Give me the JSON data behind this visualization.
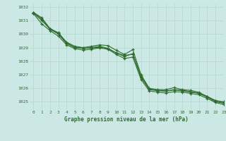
{
  "title": "Graphe pression niveau de la mer (hPa)",
  "bg_color": "#cce8e4",
  "grid_color": "#b0d8d0",
  "line_color": "#2d6e2d",
  "xlim": [
    -0.5,
    23
  ],
  "ylim": [
    1024.4,
    1032.2
  ],
  "yticks": [
    1025,
    1026,
    1027,
    1028,
    1029,
    1030,
    1031,
    1032
  ],
  "xticks": [
    0,
    1,
    2,
    3,
    4,
    5,
    6,
    7,
    8,
    9,
    10,
    11,
    12,
    13,
    14,
    15,
    16,
    17,
    18,
    19,
    20,
    21,
    22,
    23
  ],
  "series1": [
    1031.6,
    1031.2,
    1030.4,
    1030.1,
    1029.4,
    1029.1,
    1029.0,
    1029.1,
    1029.2,
    1029.15,
    1028.8,
    1028.5,
    1028.85,
    1027.0,
    1026.0,
    1025.9,
    1025.9,
    1026.05,
    1025.9,
    1025.85,
    1025.7,
    1025.4,
    1025.1,
    1025.0
  ],
  "series2": [
    1031.55,
    1031.0,
    1030.35,
    1030.0,
    1029.3,
    1029.0,
    1028.95,
    1029.0,
    1029.1,
    1028.95,
    1028.6,
    1028.35,
    1028.55,
    1026.8,
    1025.9,
    1025.82,
    1025.78,
    1025.88,
    1025.82,
    1025.72,
    1025.62,
    1025.35,
    1025.0,
    1024.9
  ],
  "series3": [
    1031.5,
    1030.75,
    1030.25,
    1029.85,
    1029.2,
    1028.92,
    1028.82,
    1028.88,
    1028.98,
    1028.88,
    1028.5,
    1028.2,
    1028.3,
    1026.65,
    1025.8,
    1025.72,
    1025.65,
    1025.75,
    1025.72,
    1025.62,
    1025.52,
    1025.25,
    1024.95,
    1024.8
  ],
  "series4": [
    1031.6,
    1031.1,
    1030.4,
    1030.05,
    1029.35,
    1029.02,
    1028.97,
    1028.97,
    1029.02,
    1028.92,
    1028.62,
    1028.42,
    1028.52,
    1026.9,
    1025.95,
    1025.87,
    1025.8,
    1025.9,
    1025.85,
    1025.75,
    1025.65,
    1025.38,
    1025.08,
    1024.95
  ]
}
